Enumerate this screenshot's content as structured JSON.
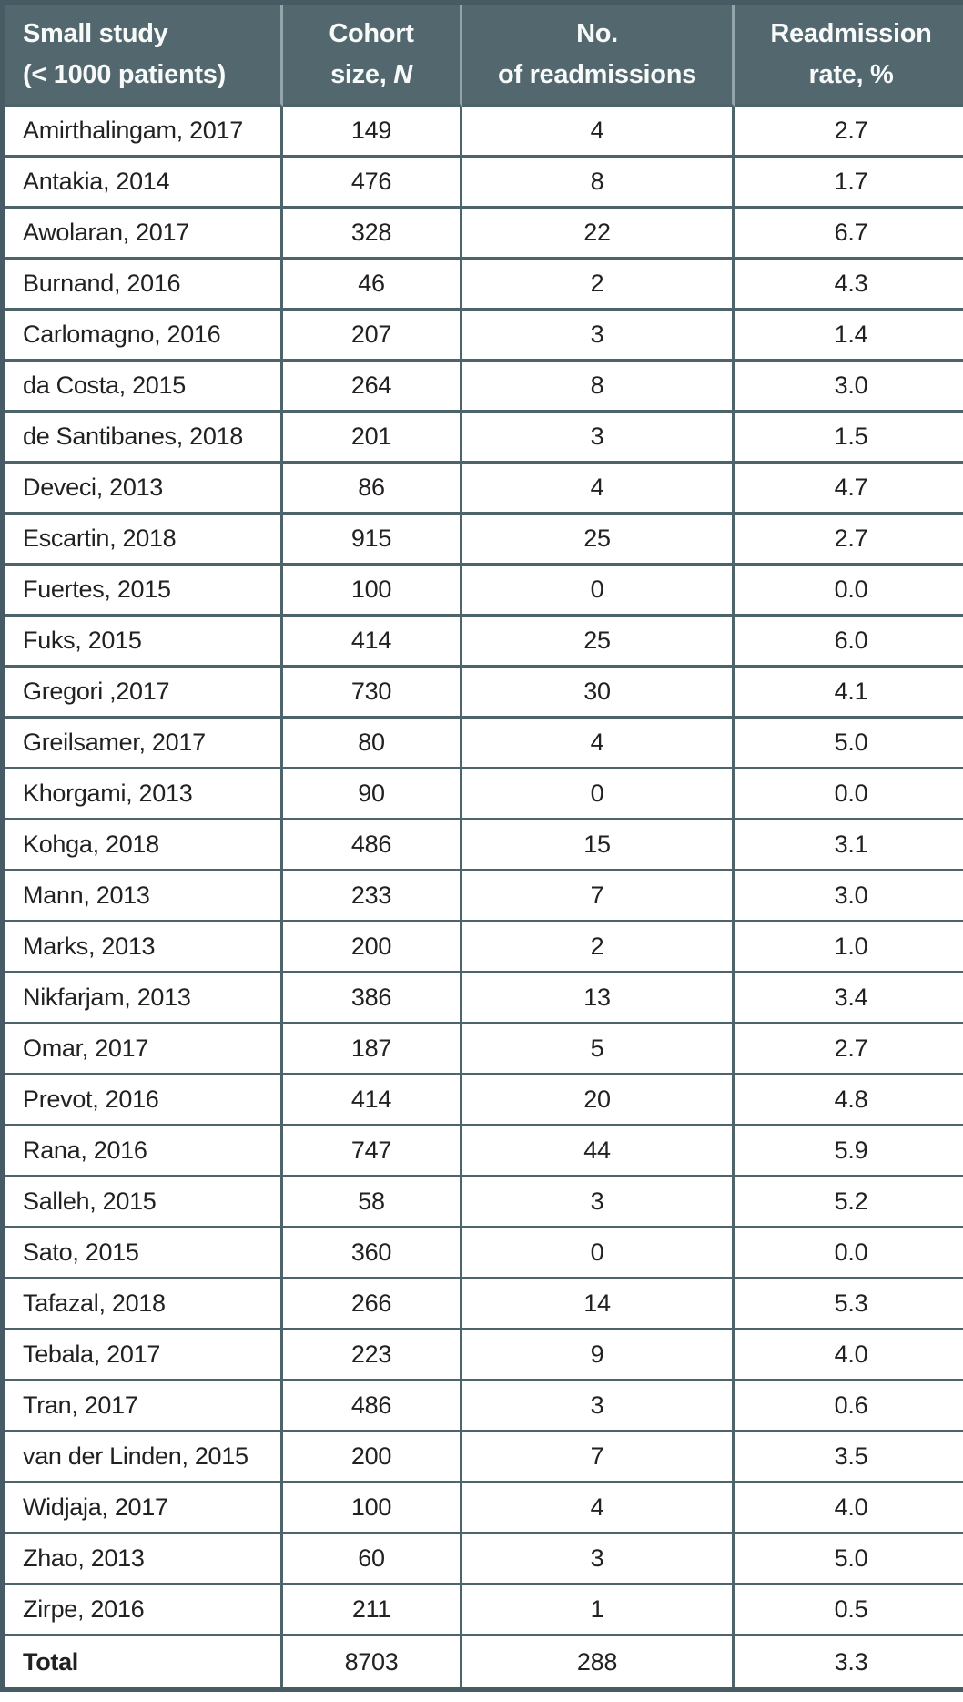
{
  "table": {
    "header": {
      "study": {
        "line1": "Small study",
        "line2": "(< 1000 patients)"
      },
      "cohort": {
        "line1": "Cohort",
        "line2_prefix": "size, ",
        "line2_italic": "N"
      },
      "readmissions": {
        "line1": "No.",
        "line2": "of readmissions"
      },
      "rate": {
        "line1": "Readmission",
        "line2": "rate, %"
      }
    },
    "rows": [
      {
        "study": "Amirthalingam, 2017",
        "cohort_size": "149",
        "readmissions": "4",
        "rate": "2.7"
      },
      {
        "study": "Antakia, 2014",
        "cohort_size": "476",
        "readmissions": "8",
        "rate": "1.7"
      },
      {
        "study": "Awolaran, 2017",
        "cohort_size": "328",
        "readmissions": "22",
        "rate": "6.7"
      },
      {
        "study": "Burnand, 2016",
        "cohort_size": "46",
        "readmissions": "2",
        "rate": "4.3"
      },
      {
        "study": "Carlomagno, 2016",
        "cohort_size": "207",
        "readmissions": "3",
        "rate": "1.4"
      },
      {
        "study": "da Costa, 2015",
        "cohort_size": "264",
        "readmissions": "8",
        "rate": "3.0"
      },
      {
        "study": "de Santibanes, 2018",
        "cohort_size": "201",
        "readmissions": "3",
        "rate": "1.5"
      },
      {
        "study": "Deveci, 2013",
        "cohort_size": "86",
        "readmissions": "4",
        "rate": "4.7"
      },
      {
        "study": "Escartin, 2018",
        "cohort_size": "915",
        "readmissions": "25",
        "rate": "2.7"
      },
      {
        "study": "Fuertes, 2015",
        "cohort_size": "100",
        "readmissions": "0",
        "rate": "0.0"
      },
      {
        "study": "Fuks, 2015",
        "cohort_size": "414",
        "readmissions": "25",
        "rate": "6.0"
      },
      {
        "study": "Gregori ,2017",
        "cohort_size": "730",
        "readmissions": "30",
        "rate": "4.1"
      },
      {
        "study": "Greilsamer, 2017",
        "cohort_size": "80",
        "readmissions": "4",
        "rate": "5.0"
      },
      {
        "study": "Khorgami, 2013",
        "cohort_size": "90",
        "readmissions": "0",
        "rate": "0.0"
      },
      {
        "study": "Kohga, 2018",
        "cohort_size": "486",
        "readmissions": "15",
        "rate": "3.1"
      },
      {
        "study": "Mann, 2013",
        "cohort_size": "233",
        "readmissions": "7",
        "rate": "3.0"
      },
      {
        "study": "Marks, 2013",
        "cohort_size": "200",
        "readmissions": "2",
        "rate": "1.0"
      },
      {
        "study": "Nikfarjam, 2013",
        "cohort_size": "386",
        "readmissions": "13",
        "rate": "3.4"
      },
      {
        "study": "Omar, 2017",
        "cohort_size": "187",
        "readmissions": "5",
        "rate": "2.7"
      },
      {
        "study": "Prevot, 2016",
        "cohort_size": "414",
        "readmissions": "20",
        "rate": "4.8"
      },
      {
        "study": "Rana, 2016",
        "cohort_size": "747",
        "readmissions": "44",
        "rate": "5.9"
      },
      {
        "study": "Salleh, 2015",
        "cohort_size": "58",
        "readmissions": "3",
        "rate": "5.2"
      },
      {
        "study": "Sato, 2015",
        "cohort_size": "360",
        "readmissions": "0",
        "rate": "0.0"
      },
      {
        "study": "Tafazal, 2018",
        "cohort_size": "266",
        "readmissions": "14",
        "rate": "5.3"
      },
      {
        "study": "Tebala, 2017",
        "cohort_size": "223",
        "readmissions": "9",
        "rate": "4.0"
      },
      {
        "study": "Tran, 2017",
        "cohort_size": "486",
        "readmissions": "3",
        "rate": "0.6"
      },
      {
        "study": "van der Linden, 2015",
        "cohort_size": "200",
        "readmissions": "7",
        "rate": "3.5"
      },
      {
        "study": "Widjaja, 2017",
        "cohort_size": "100",
        "readmissions": "4",
        "rate": "4.0"
      },
      {
        "study": "Zhao, 2013",
        "cohort_size": "60",
        "readmissions": "3",
        "rate": "5.0"
      },
      {
        "study": "Zirpe, 2016",
        "cohort_size": "211",
        "readmissions": "1",
        "rate": "0.5"
      }
    ],
    "total_row": {
      "study": "Total",
      "cohort_size": "8703",
      "readmissions": "288",
      "rate": "3.3"
    }
  },
  "colors": {
    "header_bg": "#53686e",
    "header_text": "#f8fafa",
    "header_divider": "#93a5aa",
    "cell_border": "#4d646b",
    "outer_border": "#465b63",
    "body_text": "#232022"
  }
}
